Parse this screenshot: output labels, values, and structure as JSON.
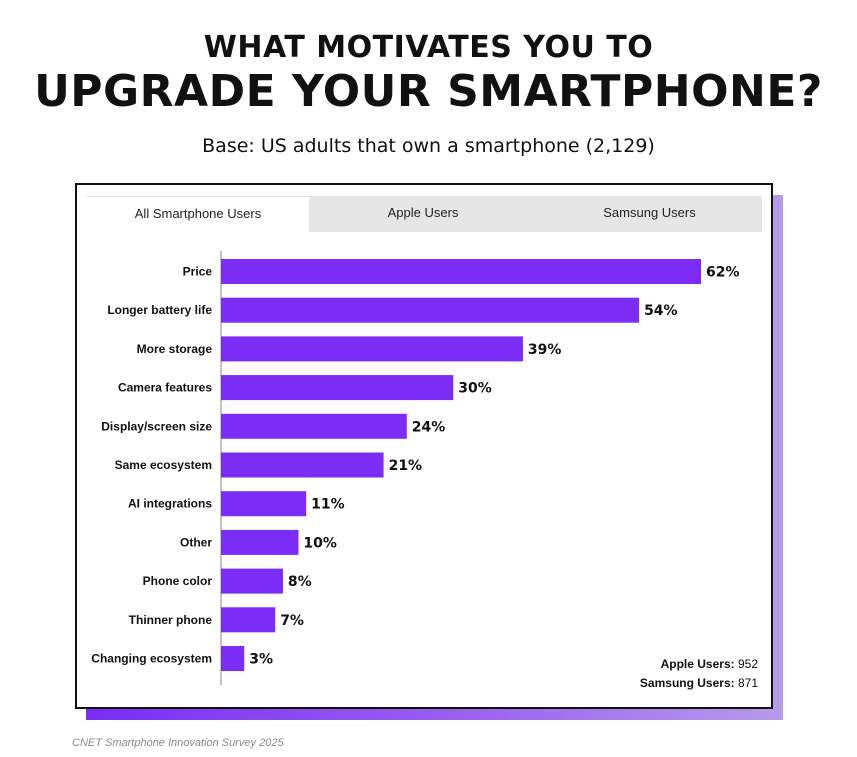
{
  "header": {
    "title_line1": "WHAT MOTIVATES YOU TO",
    "title_line2": "UPGRADE YOUR SMARTPHONE?",
    "subtitle": "Base: US adults that own a smartphone (2,129)"
  },
  "tabs": [
    {
      "label": "All Smartphone Users",
      "active": true
    },
    {
      "label": "Apple Users",
      "active": false
    },
    {
      "label": "Samsung Users",
      "active": false
    }
  ],
  "counts": {
    "apple_label": "Apple Users:",
    "apple_value": "952",
    "samsung_label": "Samsung Users:",
    "samsung_value": "871"
  },
  "source": "CNET  Smartphone Innovation Survey 2025",
  "colors": {
    "bar": "#7b2cf5"
  },
  "chart_data": {
    "type": "bar",
    "orientation": "horizontal",
    "categories": [
      "Price",
      "Longer battery life",
      "More storage",
      "Camera features",
      "Display/screen size",
      "Same ecosystem",
      "AI integrations",
      "Other",
      "Phone color",
      "Thinner phone",
      "Changing ecosystem"
    ],
    "values": [
      62,
      54,
      39,
      30,
      24,
      21,
      11,
      10,
      8,
      7,
      3
    ],
    "value_labels": [
      "62%",
      "54%",
      "39%",
      "30%",
      "24%",
      "21%",
      "11%",
      "10%",
      "8%",
      "7%",
      "3%"
    ],
    "unit": "%",
    "xlim": [
      0,
      62
    ],
    "grid": false,
    "legend": "none"
  }
}
